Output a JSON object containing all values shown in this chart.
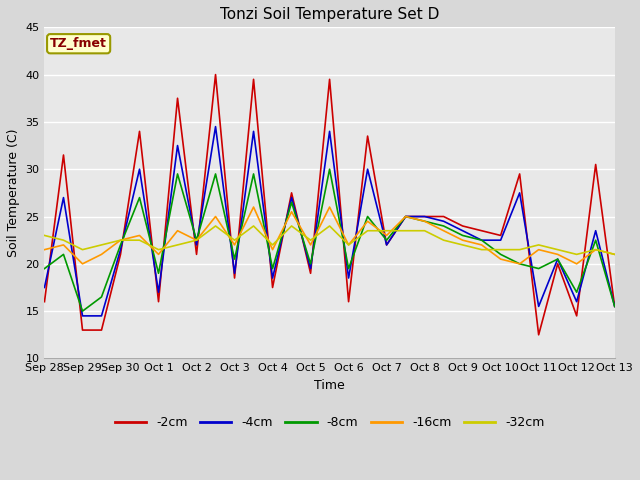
{
  "title": "Tonzi Soil Temperature Set D",
  "xlabel": "Time",
  "ylabel": "Soil Temperature (C)",
  "ylim": [
    10,
    45
  ],
  "legend_label": "TZ_fmet",
  "series": {
    "-2cm": {
      "color": "#cc0000",
      "lw": 1.2,
      "x": [
        0,
        0.5,
        1,
        1.5,
        2,
        2.5,
        3,
        3.5,
        4,
        4.5,
        5,
        5.5,
        6,
        6.5,
        7,
        7.5,
        8,
        8.5,
        9,
        9.5,
        10,
        10.5,
        11,
        11.5,
        12,
        12.5,
        13,
        13.5,
        14,
        14.5,
        15
      ],
      "y": [
        16,
        31.5,
        13,
        13,
        21,
        34,
        16,
        37.5,
        21,
        40,
        18.5,
        39.5,
        17.5,
        27.5,
        19,
        39.5,
        16,
        33.5,
        22,
        25,
        25,
        25,
        24,
        23.5,
        23,
        29.5,
        12.5,
        20,
        14.5,
        30.5,
        15.5
      ]
    },
    "-4cm": {
      "color": "#0000cc",
      "lw": 1.2,
      "x": [
        0,
        0.5,
        1,
        1.5,
        2,
        2.5,
        3,
        3.5,
        4,
        4.5,
        5,
        5.5,
        6,
        6.5,
        7,
        7.5,
        8,
        8.5,
        9,
        9.5,
        10,
        10.5,
        11,
        11.5,
        12,
        12.5,
        13,
        13.5,
        14,
        14.5,
        15
      ],
      "y": [
        17.5,
        27,
        14.5,
        14.5,
        21.5,
        30,
        17,
        32.5,
        22,
        34.5,
        19,
        34,
        18.5,
        27,
        19.5,
        34,
        18.5,
        30,
        22,
        25,
        25,
        24.5,
        23.5,
        22.5,
        22.5,
        27.5,
        15.5,
        20.5,
        16,
        23.5,
        15.5
      ]
    },
    "-8cm": {
      "color": "#009900",
      "lw": 1.2,
      "x": [
        0,
        0.5,
        1,
        1.5,
        2,
        2.5,
        3,
        3.5,
        4,
        4.5,
        5,
        5.5,
        6,
        6.5,
        7,
        7.5,
        8,
        8.5,
        9,
        9.5,
        10,
        10.5,
        11,
        11.5,
        12,
        12.5,
        13,
        13.5,
        14,
        14.5,
        15
      ],
      "y": [
        19.5,
        21,
        15,
        16.5,
        22,
        27,
        19,
        29.5,
        22.5,
        29.5,
        20.5,
        29.5,
        19.5,
        26.5,
        20,
        30,
        19.5,
        25,
        22.5,
        25,
        24.5,
        24,
        23,
        22.5,
        21,
        20,
        19.5,
        20.5,
        17,
        22.5,
        15.5
      ]
    },
    "-16cm": {
      "color": "#ff9900",
      "lw": 1.2,
      "x": [
        0,
        0.5,
        1,
        1.5,
        2,
        2.5,
        3,
        3.5,
        4,
        4.5,
        5,
        5.5,
        6,
        6.5,
        7,
        7.5,
        8,
        8.5,
        9,
        9.5,
        10,
        10.5,
        11,
        11.5,
        12,
        12.5,
        13,
        13.5,
        14,
        14.5,
        15
      ],
      "y": [
        21.5,
        22,
        20,
        21,
        22.5,
        23,
        21,
        23.5,
        22.5,
        25,
        22,
        26,
        21.5,
        25.5,
        22,
        26,
        22,
        24.5,
        23,
        25,
        24.5,
        23.5,
        22.5,
        22,
        20.5,
        20,
        21.5,
        21,
        20,
        21.5,
        21
      ]
    },
    "-32cm": {
      "color": "#cccc00",
      "lw": 1.2,
      "x": [
        0,
        0.5,
        1,
        1.5,
        2,
        2.5,
        3,
        3.5,
        4,
        4.5,
        5,
        5.5,
        6,
        6.5,
        7,
        7.5,
        8,
        8.5,
        9,
        9.5,
        10,
        10.5,
        11,
        11.5,
        12,
        12.5,
        13,
        13.5,
        14,
        14.5,
        15
      ],
      "y": [
        23,
        22.5,
        21.5,
        22,
        22.5,
        22.5,
        21.5,
        22,
        22.5,
        24,
        22.5,
        24,
        22,
        24,
        22.5,
        24,
        22,
        23.5,
        23.5,
        23.5,
        23.5,
        22.5,
        22,
        21.5,
        21.5,
        21.5,
        22,
        21.5,
        21,
        21.5,
        21
      ]
    }
  },
  "background_color": "#d8d8d8",
  "plot_bg_color": "#e8e8e8",
  "grid_color": "#ffffff",
  "tick_labels": [
    "Sep 28",
    "Sep 29",
    "Sep 30",
    "Oct 1",
    "Oct 2",
    "Oct 3",
    "Oct 4",
    "Oct 5",
    "Oct 6",
    "Oct 7",
    "Oct 8",
    "Oct 9",
    "Oct 10",
    "Oct 11",
    "Oct 12",
    "Oct 13"
  ],
  "tick_positions": [
    0,
    1,
    2,
    3,
    4,
    5,
    6,
    7,
    8,
    9,
    10,
    11,
    12,
    13,
    14,
    15
  ],
  "title_fontsize": 11,
  "axis_fontsize": 9,
  "tick_fontsize": 8
}
